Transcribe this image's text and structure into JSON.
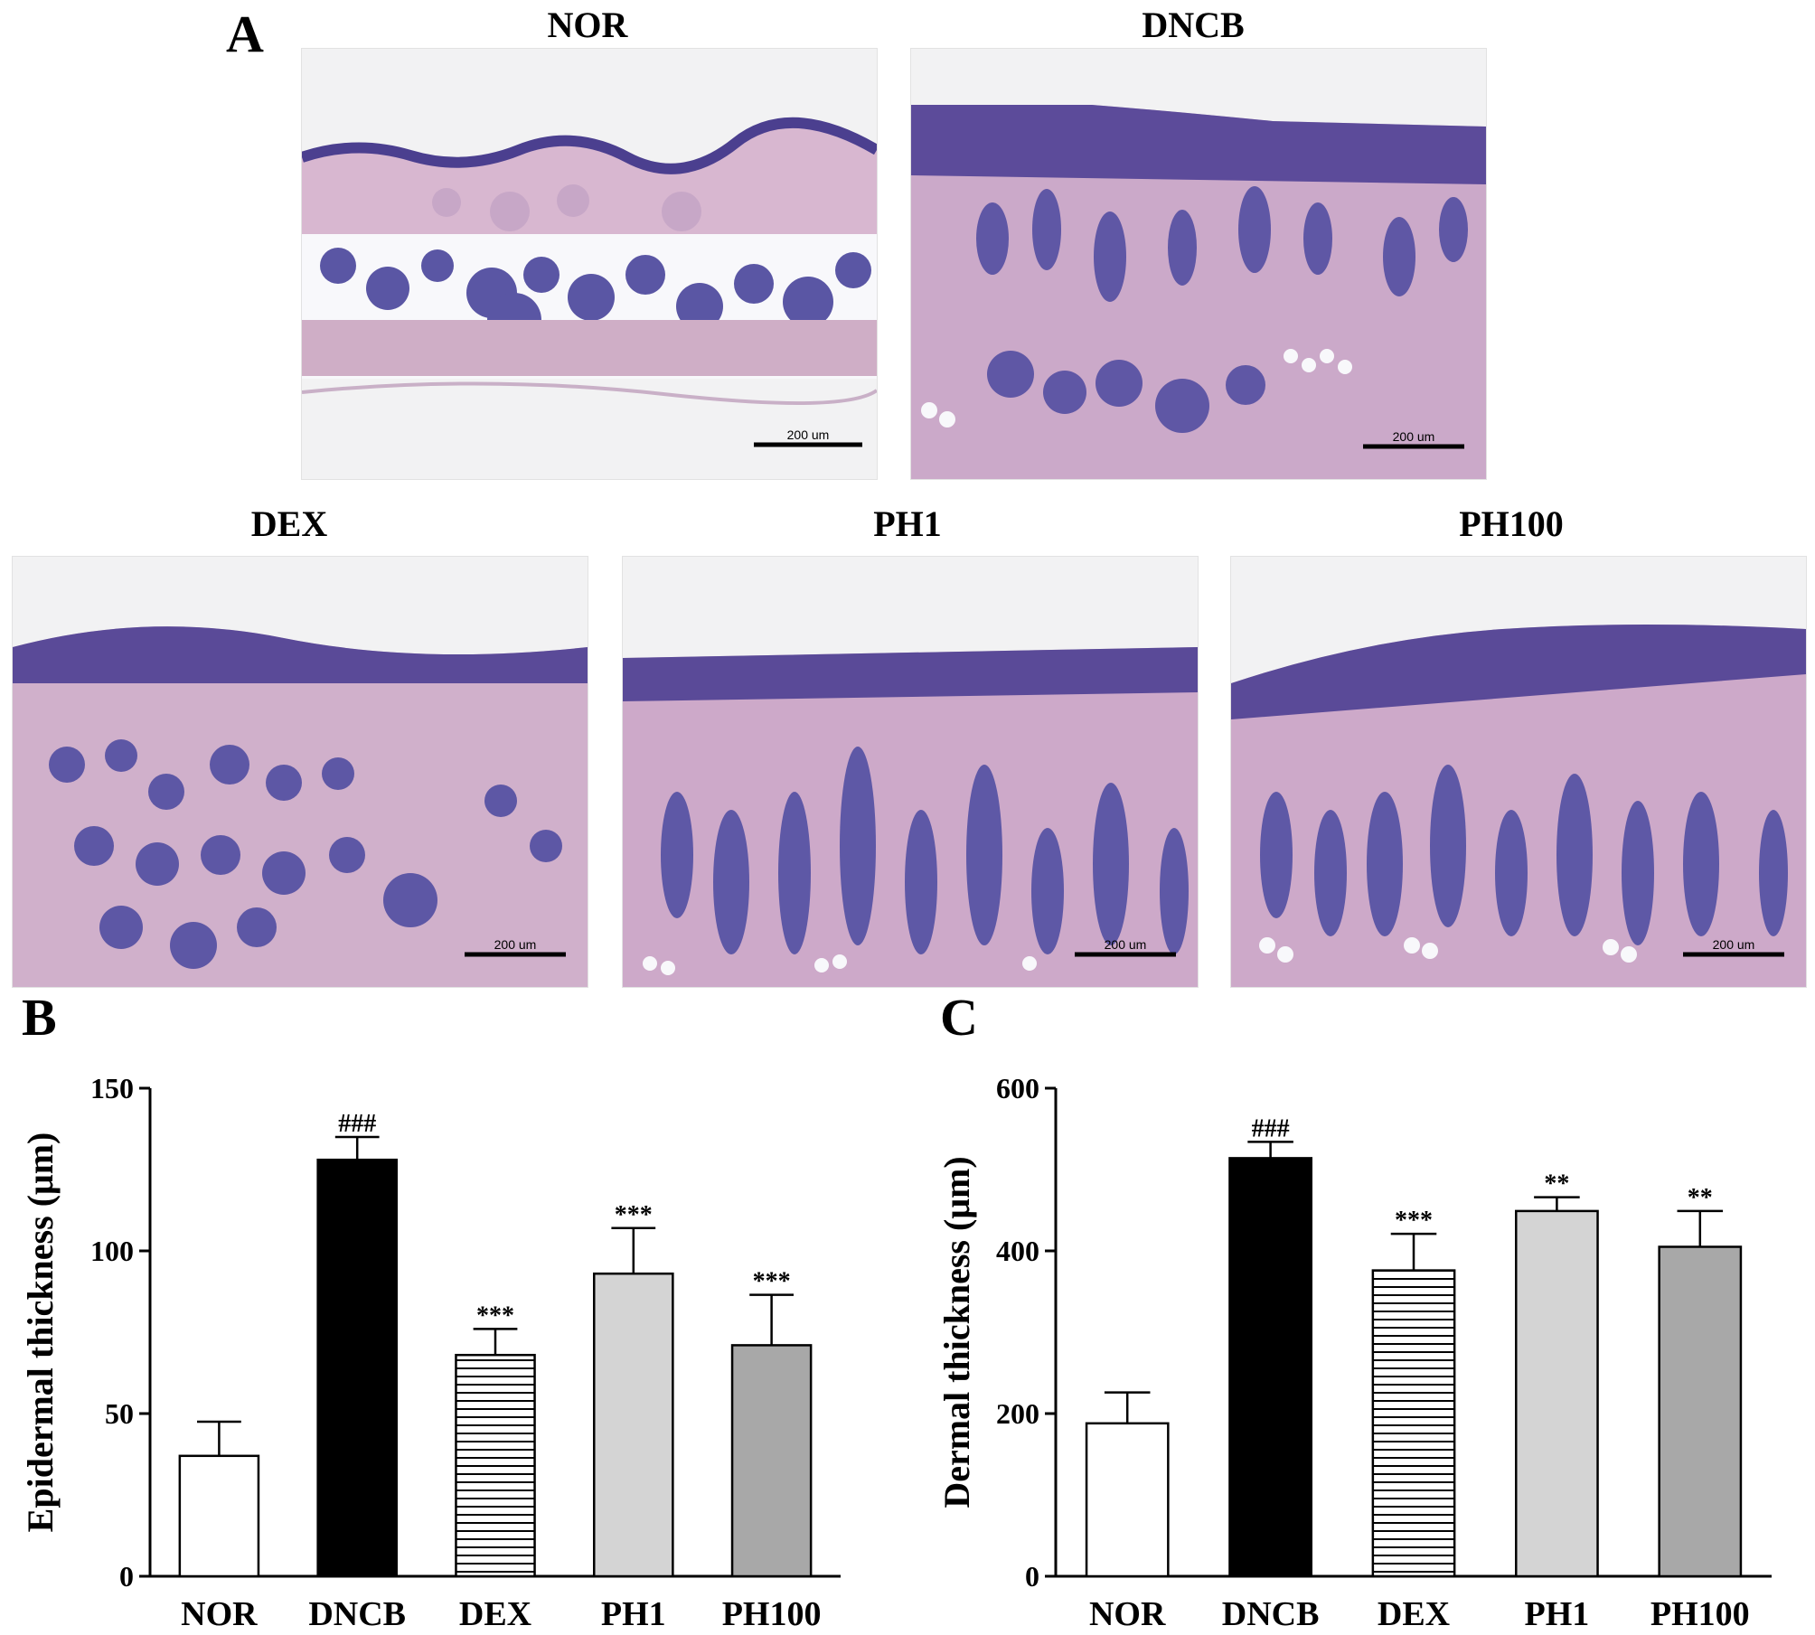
{
  "panels": {
    "a_label": "A",
    "b_label": "B",
    "c_label": "C"
  },
  "micrographs": [
    {
      "label": "NOR",
      "scale_bar": "200 um"
    },
    {
      "label": "DNCB",
      "scale_bar": "200 um"
    },
    {
      "label": "DEX",
      "scale_bar": "200 um"
    },
    {
      "label": "PH1",
      "scale_bar": "200 um"
    },
    {
      "label": "PH100",
      "scale_bar": "200 um"
    }
  ],
  "colors": {
    "tissue_bg": "#e6c8dc",
    "epidermis": "#5a4c9a",
    "follicle": "#5c56a6",
    "slide_bg": "#f4f4f6"
  },
  "chart_data": [
    {
      "type": "bar",
      "panel": "B",
      "categories": [
        "NOR",
        "DNCB",
        "DEX",
        "PH1",
        "PH100"
      ],
      "values": [
        37,
        128,
        68,
        93,
        71
      ],
      "errors": [
        10.5,
        7,
        8,
        14,
        15.5
      ],
      "significance": [
        "",
        "###",
        "***",
        "***",
        "***"
      ],
      "bar_styles": [
        "white",
        "black",
        "horizontal-lines",
        "light-gray",
        "dark-gray"
      ],
      "ylabel": "Epidermal thickness (μm)",
      "xlabel": "",
      "ylim": [
        0,
        150
      ],
      "yticks": [
        0,
        50,
        100,
        150
      ]
    },
    {
      "type": "bar",
      "panel": "C",
      "categories": [
        "NOR",
        "DNCB",
        "DEX",
        "PH1",
        "PH100"
      ],
      "values": [
        188,
        514,
        376,
        449,
        405
      ],
      "errors": [
        38,
        20,
        45,
        17,
        44
      ],
      "significance": [
        "",
        "###",
        "***",
        "**",
        "**"
      ],
      "bar_styles": [
        "white",
        "black",
        "horizontal-lines",
        "light-gray",
        "dark-gray"
      ],
      "ylabel": "Dermal thickness (μm)",
      "xlabel": "",
      "ylim": [
        0,
        600
      ],
      "yticks": [
        0,
        200,
        400,
        600
      ]
    }
  ]
}
